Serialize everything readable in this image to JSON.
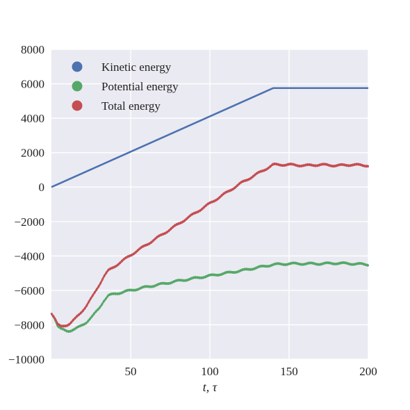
{
  "chart_data": {
    "type": "line",
    "title": "",
    "xlabel": "t, τ",
    "ylabel": "",
    "xlim": [
      0,
      200
    ],
    "ylim": [
      -10000,
      8000
    ],
    "xticks": [
      50,
      100,
      150,
      200
    ],
    "xtick_labels": [
      "50",
      "100",
      "150",
      "200"
    ],
    "yticks": [
      -10000,
      -8000,
      -6000,
      -4000,
      -2000,
      0,
      2000,
      4000,
      6000,
      8000
    ],
    "ytick_labels": [
      "−10000",
      "−8000",
      "−6000",
      "−4000",
      "−2000",
      "0",
      "2000",
      "4000",
      "6000",
      "8000"
    ],
    "grid": true,
    "background": "#eaeaf2",
    "legend_position": "top-left",
    "series": [
      {
        "name": "Kinetic energy",
        "color": "#4c72b0",
        "points": [
          [
            0,
            0
          ],
          [
            140,
            5750
          ],
          [
            200,
            5750
          ]
        ]
      },
      {
        "name": "Potential energy",
        "color": "#55a868",
        "points": [
          [
            0,
            -7300
          ],
          [
            2,
            -7600
          ],
          [
            4,
            -8100
          ],
          [
            6,
            -8250
          ],
          [
            8,
            -8300
          ],
          [
            10,
            -8350
          ],
          [
            12,
            -8330
          ],
          [
            15,
            -8250
          ],
          [
            18,
            -8100
          ],
          [
            22,
            -7850
          ],
          [
            26,
            -7500
          ],
          [
            30,
            -7050
          ],
          [
            33,
            -6600
          ],
          [
            36,
            -6300
          ],
          [
            40,
            -6200
          ],
          [
            50,
            -6000
          ],
          [
            60,
            -5800
          ],
          [
            80,
            -5450
          ],
          [
            100,
            -5150
          ],
          [
            120,
            -4850
          ],
          [
            140,
            -4500
          ],
          [
            150,
            -4450
          ],
          [
            160,
            -4450
          ],
          [
            170,
            -4450
          ],
          [
            180,
            -4420
          ],
          [
            190,
            -4450
          ],
          [
            200,
            -4500
          ]
        ]
      },
      {
        "name": "Total energy",
        "color": "#c44e52",
        "points": [
          [
            0,
            -7300
          ],
          [
            2,
            -7600
          ],
          [
            4,
            -8000
          ],
          [
            6,
            -8100
          ],
          [
            8,
            -8050
          ],
          [
            10,
            -8000
          ],
          [
            12,
            -7900
          ],
          [
            15,
            -7650
          ],
          [
            18,
            -7350
          ],
          [
            22,
            -6900
          ],
          [
            26,
            -6350
          ],
          [
            30,
            -5700
          ],
          [
            33,
            -5200
          ],
          [
            36,
            -4850
          ],
          [
            40,
            -4600
          ],
          [
            50,
            -3950
          ],
          [
            60,
            -3350
          ],
          [
            80,
            -2150
          ],
          [
            100,
            -950
          ],
          [
            120,
            250
          ],
          [
            140,
            1300
          ],
          [
            150,
            1300
          ],
          [
            160,
            1250
          ],
          [
            170,
            1300
          ],
          [
            180,
            1250
          ],
          [
            190,
            1300
          ],
          [
            200,
            1250
          ]
        ]
      }
    ]
  }
}
